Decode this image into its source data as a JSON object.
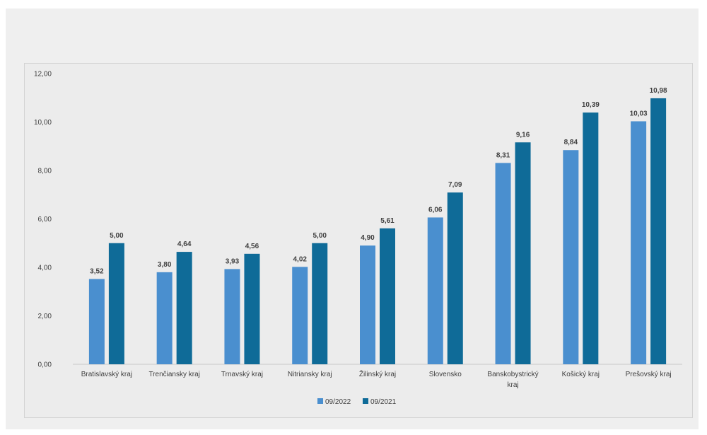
{
  "chart_data": {
    "type": "bar",
    "categories": [
      [
        "Bratislavský kraj"
      ],
      [
        "Trenčiansky kraj"
      ],
      [
        "Trnavský kraj"
      ],
      [
        "Nitriansky kraj"
      ],
      [
        "Žilinský kraj"
      ],
      [
        "Slovensko"
      ],
      [
        "Banskobystrický",
        "kraj"
      ],
      [
        "Košický kraj"
      ],
      [
        "Prešovský kraj"
      ]
    ],
    "series": [
      {
        "name": "09/2022",
        "color": "#4a8fcf",
        "values": [
          3.52,
          3.8,
          3.93,
          4.02,
          4.9,
          6.06,
          8.31,
          8.84,
          10.03
        ],
        "labels": [
          "3,52",
          "3,80",
          "3,93",
          "4,02",
          "4,90",
          "6,06",
          "8,31",
          "8,84",
          "10,03"
        ]
      },
      {
        "name": "09/2021",
        "color": "#0f6b98",
        "values": [
          5.0,
          4.64,
          4.56,
          5.0,
          5.61,
          7.09,
          9.16,
          10.39,
          10.98
        ],
        "labels": [
          "5,00",
          "4,64",
          "4,56",
          "5,00",
          "5,61",
          "7,09",
          "9,16",
          "10,39",
          "10,98"
        ]
      }
    ],
    "ylim": [
      0,
      12
    ],
    "y_ticks": [
      0,
      2,
      4,
      6,
      8,
      10,
      12
    ],
    "y_tick_labels": [
      "0,00",
      "2,00",
      "4,00",
      "6,00",
      "8,00",
      "10,00",
      "12,00"
    ],
    "grid": false,
    "legend_position": "bottom-center"
  }
}
